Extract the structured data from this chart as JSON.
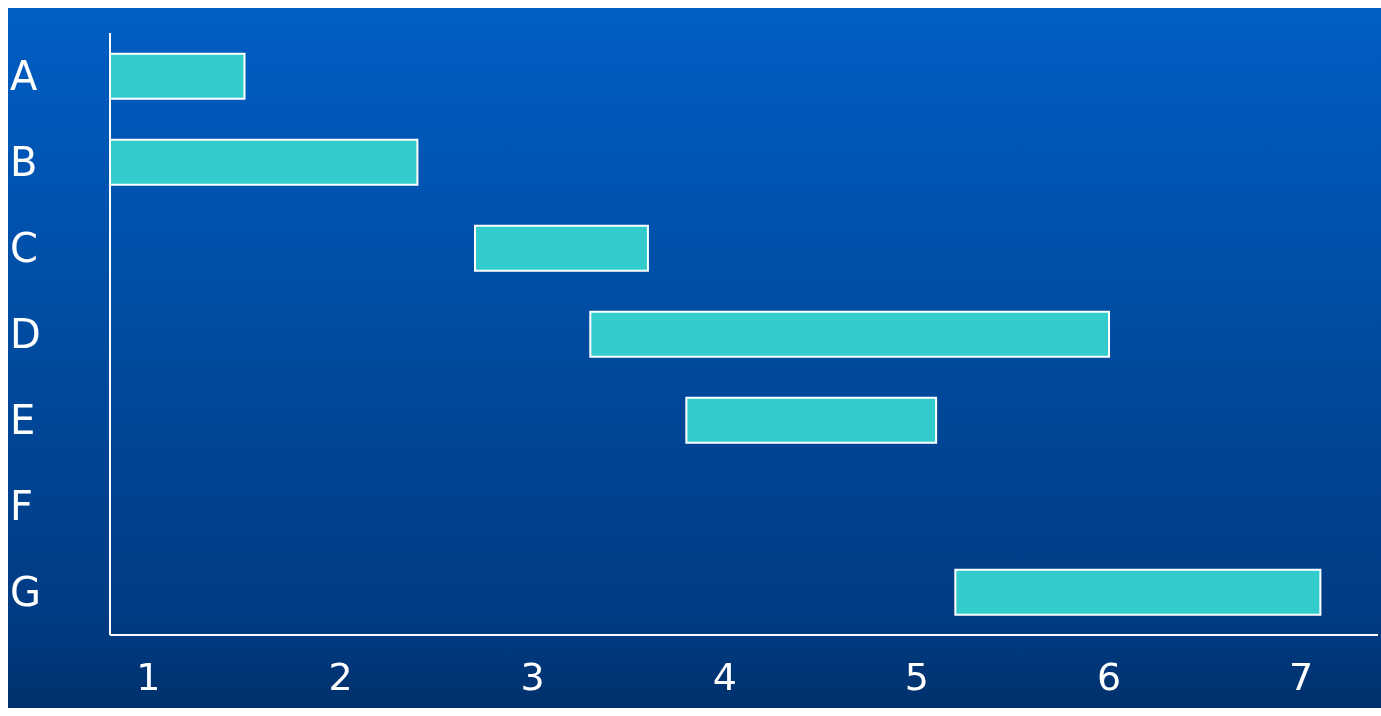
{
  "chart_data": {
    "type": "bar",
    "orientation": "horizontal",
    "categories": [
      "A",
      "B",
      "C",
      "D",
      "E",
      "F",
      "G"
    ],
    "base": [
      0.8,
      0.8,
      2.7,
      3.3,
      3.8,
      null,
      5.2
    ],
    "values": [
      0.7,
      1.6,
      0.9,
      2.7,
      1.3,
      null,
      1.9
    ],
    "color": "#33cccc",
    "xlim": [
      0.8,
      7.4
    ],
    "xticks": [
      1,
      2,
      3,
      4,
      5,
      6,
      7
    ]
  }
}
